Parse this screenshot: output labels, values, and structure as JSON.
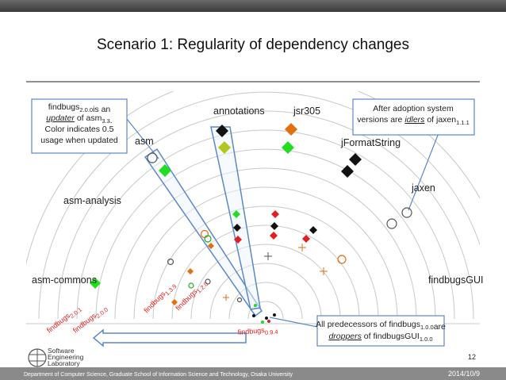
{
  "slide": {
    "title": "Scenario 1: Regularity of dependency changes",
    "labels": [
      "asm",
      "annotations",
      "jsr305",
      "jFormatString",
      "jaxen",
      "asm-analysis",
      "asm-commons",
      "findbugsGUI"
    ],
    "callouts": [
      [
        [
          {
            "text": "findbugs"
          },
          {
            "sub": "2.0.0"
          },
          {
            "text": "is an"
          }
        ],
        [
          {
            "em": "updater"
          },
          {
            "text": " of asm"
          },
          {
            "sub": "3.3"
          },
          {
            "text": "."
          }
        ],
        [
          {
            "text": "Color indicates 0.5"
          }
        ],
        [
          {
            "text": "usage when updated"
          }
        ]
      ],
      [
        [
          {
            "text": "After adoption system"
          }
        ],
        [
          {
            "text": "versions are "
          },
          {
            "em": "idlers"
          },
          {
            "text": " of jaxen"
          },
          {
            "sub": "1.1.1"
          }
        ]
      ],
      [
        [
          {
            "text": "All predecessors of findbugs"
          },
          {
            "sub": "1.0.0"
          },
          {
            "text": "are"
          }
        ],
        [
          {
            "em": "droppers"
          },
          {
            "text": " of findbugsGUI"
          },
          {
            "sub": "1.0.0"
          }
        ]
      ]
    ],
    "versions": [
      [
        {
          "text": "findbugs"
        },
        {
          "sub": "2.0.1"
        }
      ],
      [
        {
          "text": "findbugs"
        },
        {
          "sub": "2.0.0"
        }
      ],
      [
        {
          "text": "findbugs"
        },
        {
          "sub": "1.3.9"
        }
      ],
      [
        {
          "text": "findbugs"
        },
        {
          "sub": "1.2.0"
        }
      ],
      [
        {
          "text": "findbugs"
        },
        {
          "sub": "0.9.4"
        }
      ]
    ],
    "logo": [
      "Software",
      "Engineering",
      "Laboratory"
    ],
    "page_number": "12",
    "footer": "Department of Computer Science, Graduate School of Information Science and Technology, Osaka University",
    "date": "2014/10/9"
  }
}
